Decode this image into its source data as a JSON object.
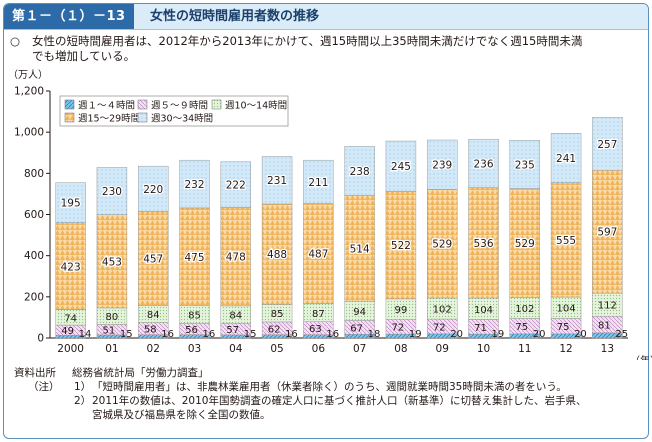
{
  "header": {
    "figure_label": "第１－（１）－13図",
    "title": "女性の短時間雇用者数の推移"
  },
  "summary": {
    "marker": "○",
    "lines": [
      "女性の短時間雇用者は、2012年から2013年にかけて、週15時間以上35時間未満だけでなく週15時間未満",
      "でも増加している。"
    ]
  },
  "chart_data": {
    "type": "bar",
    "stacked": true,
    "categories": [
      "2000",
      "01",
      "02",
      "03",
      "04",
      "05",
      "06",
      "07",
      "08",
      "09",
      "10",
      "11",
      "12",
      "13"
    ],
    "x_unit": "（年）",
    "y_unit": "（万人）",
    "ylim": [
      0,
      1200
    ],
    "yticks": [
      0,
      200,
      400,
      600,
      800,
      1000,
      1200
    ],
    "ytick_labels": [
      "0",
      "200",
      "400",
      "600",
      "800",
      "1,000",
      "1,200"
    ],
    "grid": false,
    "legend_position": "top-left",
    "series": [
      {
        "name": "週１～４時間",
        "values": [
          14,
          15,
          16,
          16,
          15,
          16,
          16,
          18,
          19,
          20,
          19,
          20,
          20,
          25
        ],
        "color": "#3aa0d8"
      },
      {
        "name": "週５～９時間",
        "values": [
          49,
          51,
          58,
          56,
          57,
          62,
          63,
          67,
          72,
          72,
          71,
          75,
          75,
          81
        ],
        "color": "#ead2ea"
      },
      {
        "name": "週10～14時間",
        "values": [
          74,
          80,
          84,
          85,
          84,
          85,
          87,
          94,
          99,
          102,
          104,
          102,
          104,
          112
        ],
        "color": "#d3ecc8"
      },
      {
        "name": "週15～29時間",
        "values": [
          423,
          453,
          457,
          475,
          478,
          488,
          487,
          514,
          522,
          529,
          536,
          529,
          555,
          597
        ],
        "color": "#f6c882"
      },
      {
        "name": "週30～34時間",
        "values": [
          195,
          230,
          220,
          232,
          222,
          231,
          211,
          238,
          245,
          239,
          236,
          235,
          241,
          257
        ],
        "color": "#bcdcf2"
      }
    ]
  },
  "notes": {
    "source_key": "資料出所",
    "source_value": "総務省統計局「労働力調査」",
    "notes_key": "（注）",
    "items": [
      {
        "num": "1）",
        "text": "「短時間雇用者」は、非農林業雇用者（休業者除く）のうち、週間就業時間35時間未満の者をいう。"
      },
      {
        "num": "2）",
        "text": "2011年の数値は、2010年国勢調査の確定人口に基づく推計人口（新基準）に切替え集計した、岩手県、"
      },
      {
        "num": "",
        "text": "宮城県及び福島県を除く全国の数値。"
      }
    ]
  }
}
